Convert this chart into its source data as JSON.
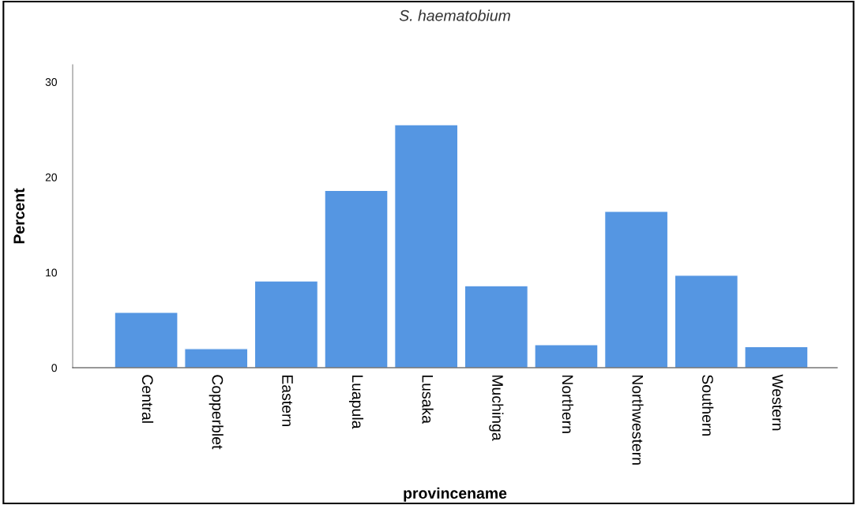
{
  "chart_data": {
    "type": "bar",
    "title": "S. haematobium",
    "xlabel": "provincename",
    "ylabel": "Percent",
    "categories": [
      "Central",
      "Copperblet",
      "Eastern",
      "Luapula",
      "Lusaka",
      "Muchinga",
      "Northern",
      "Northwestern",
      "Southern",
      "Western"
    ],
    "values": [
      5.8,
      2.0,
      9.1,
      18.6,
      25.5,
      8.6,
      2.4,
      16.4,
      9.7,
      2.2
    ],
    "color": "#5596e2",
    "ylim": [
      0,
      31.8
    ],
    "yticks": [
      0,
      10,
      20,
      30
    ],
    "grid": false,
    "legend": false
  }
}
